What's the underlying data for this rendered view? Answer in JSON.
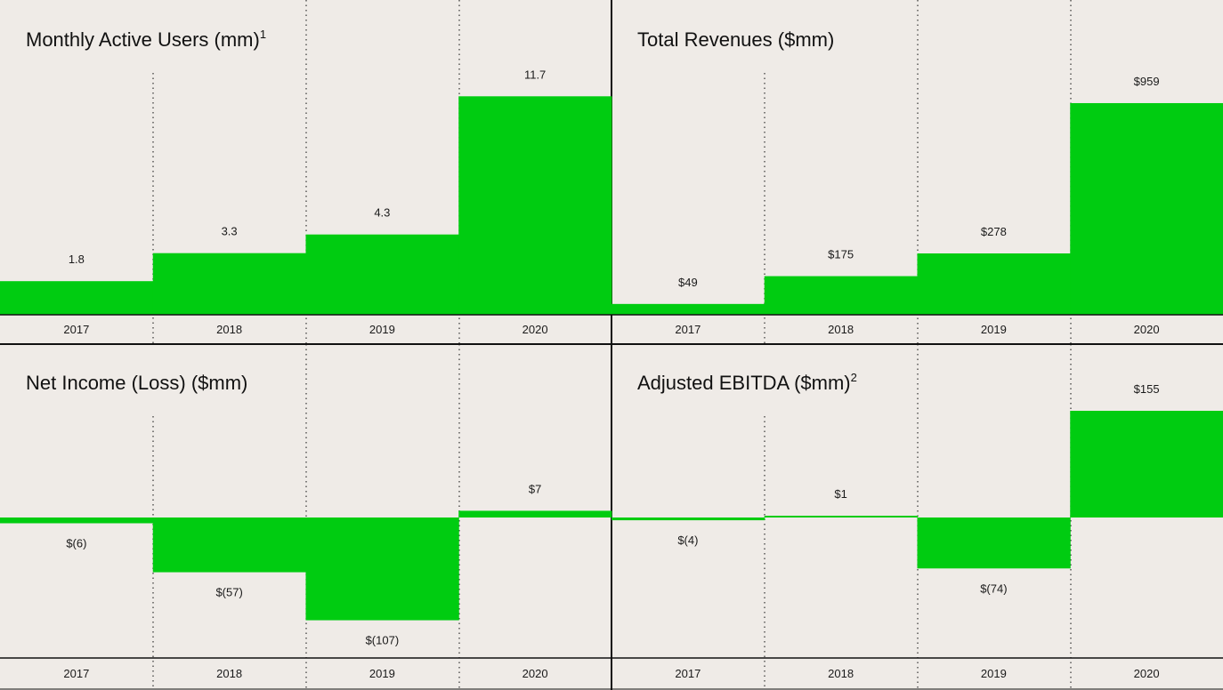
{
  "colors": {
    "background": "#EFEBE7",
    "bar": "#00CC11",
    "axis": "#111111"
  },
  "chart_data": [
    {
      "type": "bar",
      "title": "Monthly Active Users (mm)",
      "title_sup": "1",
      "categories": [
        "2017",
        "2018",
        "2019",
        "2020"
      ],
      "values": [
        1.8,
        3.3,
        4.3,
        11.7
      ],
      "value_labels": [
        "1.8",
        "3.3",
        "4.3",
        "11.7"
      ],
      "ylim": [
        0,
        12.2
      ],
      "grid": false
    },
    {
      "type": "bar",
      "title": "Total Revenues ($mm)",
      "title_sup": "",
      "categories": [
        "2017",
        "2018",
        "2019",
        "2020"
      ],
      "values": [
        49,
        175,
        278,
        959
      ],
      "value_labels": [
        "$49",
        "$175",
        "$278",
        "$959"
      ],
      "ylim": [
        0,
        1000
      ],
      "grid": false
    },
    {
      "type": "bar",
      "title": "Net Income (Loss) ($mm)",
      "title_sup": "",
      "categories": [
        "2017",
        "2018",
        "2019",
        "2020"
      ],
      "values": [
        -6,
        -57,
        -107,
        7
      ],
      "value_labels": [
        "$(6)",
        "$(57)",
        "$(107)",
        "$7"
      ],
      "ylim": [
        -150,
        150
      ],
      "grid": false
    },
    {
      "type": "bar",
      "title": "Adjusted EBITDA ($mm)",
      "title_sup": "2",
      "categories": [
        "2017",
        "2018",
        "2019",
        "2020"
      ],
      "values": [
        -4,
        1,
        -74,
        155
      ],
      "value_labels": [
        "$(4)",
        "$1",
        "$(74)",
        "$155"
      ],
      "ylim": [
        -200,
        200
      ],
      "grid": false
    }
  ]
}
